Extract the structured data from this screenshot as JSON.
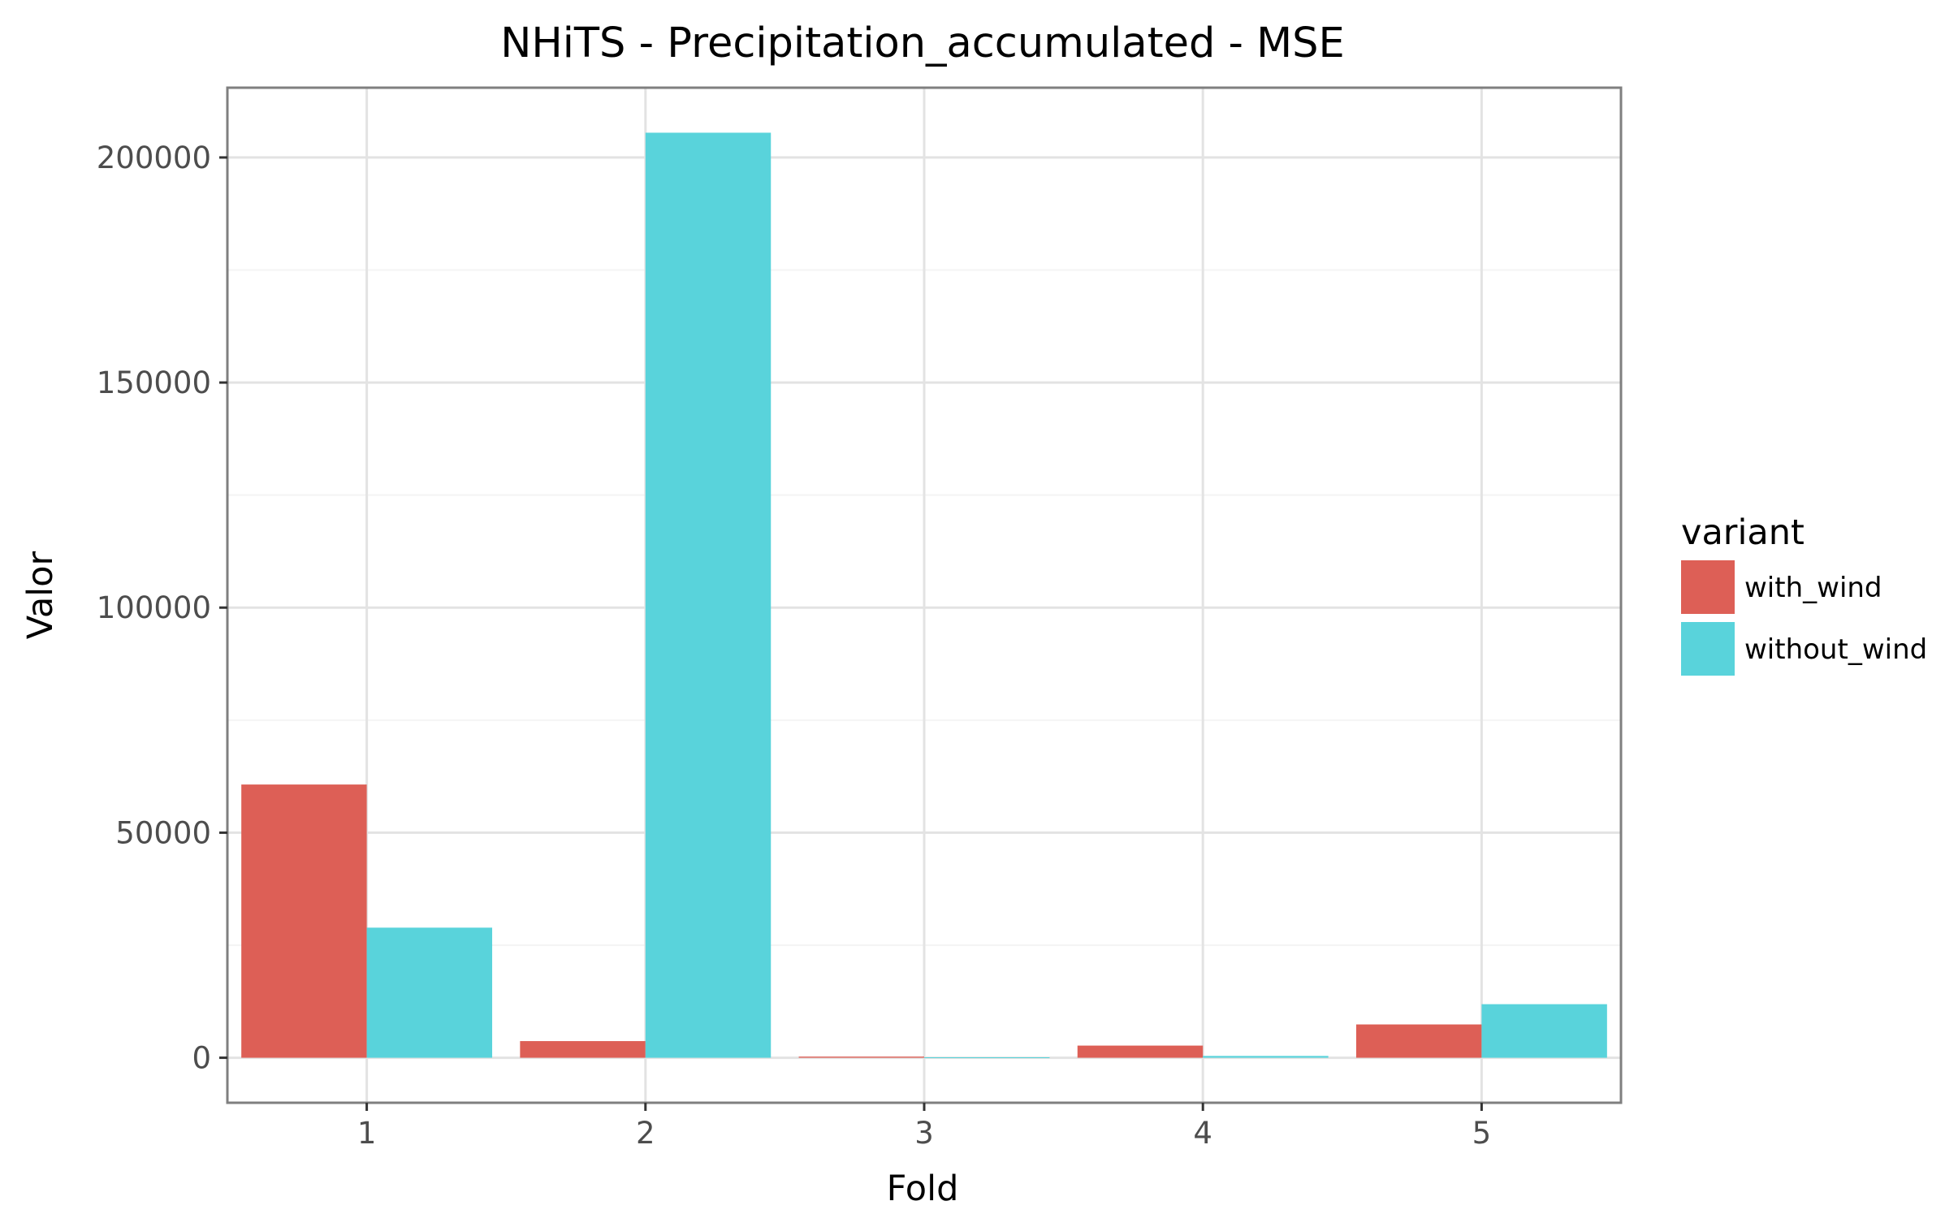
{
  "chart_data": {
    "type": "bar",
    "title": "NHiTS - Precipitation_accumulated - MSE",
    "xlabel": "Fold",
    "ylabel": "Valor",
    "categories": [
      "1",
      "2",
      "3",
      "4",
      "5"
    ],
    "series": [
      {
        "name": "with_wind",
        "color": "#dd5f56",
        "values": [
          60700,
          3700,
          250,
          2700,
          7400
        ]
      },
      {
        "name": "without_wind",
        "color": "#59d3db",
        "values": [
          28900,
          205500,
          100,
          400,
          11900
        ]
      }
    ],
    "ylim": [
      -10000,
      215500
    ],
    "yticks": [
      0,
      50000,
      100000,
      150000,
      200000
    ],
    "ytick_labels": [
      "0",
      "50000",
      "100000",
      "150000",
      "200000"
    ],
    "grid": true,
    "legend": {
      "title": "variant",
      "placement": "right"
    }
  }
}
